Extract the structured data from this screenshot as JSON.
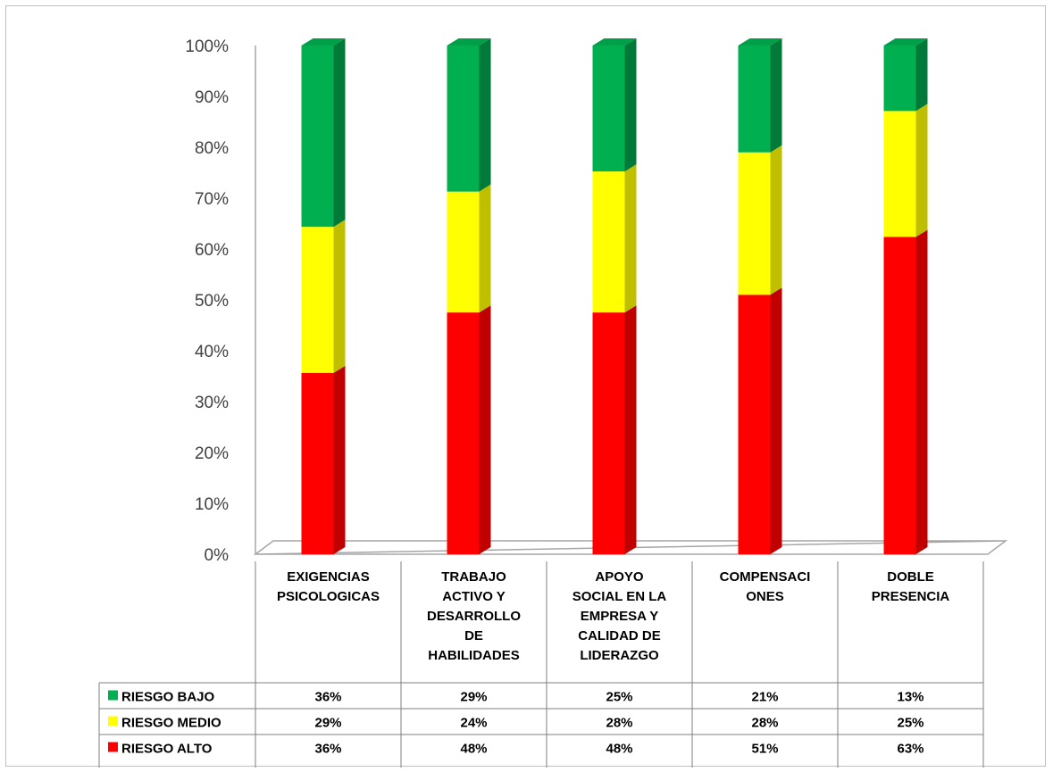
{
  "chart_data": {
    "type": "bar",
    "stacked": true,
    "percent_stacked": true,
    "three_d": true,
    "title": "",
    "xlabel": "",
    "ylabel": "",
    "ylim": [
      0,
      100
    ],
    "yticks": [
      "0%",
      "10%",
      "20%",
      "30%",
      "40%",
      "50%",
      "60%",
      "70%",
      "80%",
      "90%",
      "100%"
    ],
    "categories": [
      [
        "EXIGENCIAS",
        "PSICOLOGICAS"
      ],
      [
        "TRABAJO",
        "ACTIVO Y",
        "DESARROLLO",
        "DE",
        "HABILIDADES"
      ],
      [
        "APOYO",
        "SOCIAL EN LA",
        "EMPRESA Y",
        "CALIDAD DE",
        "LIDERAZGO"
      ],
      [
        "COMPENSACI",
        "ONES"
      ],
      [
        "DOBLE",
        "PRESENCIA"
      ]
    ],
    "series": [
      {
        "name": "RIESGO ALTO",
        "color": "#ff0000",
        "side": "#c00000",
        "values": [
          36,
          48,
          48,
          51,
          63
        ],
        "labels": [
          "36%",
          "48%",
          "48%",
          "51%",
          "63%"
        ]
      },
      {
        "name": "RIESGO MEDIO",
        "color": "#ffff00",
        "side": "#bfbf00",
        "values": [
          29,
          24,
          28,
          28,
          25
        ],
        "labels": [
          "29%",
          "24%",
          "28%",
          "28%",
          "25%"
        ]
      },
      {
        "name": "RIESGO BAJO",
        "color": "#00b050",
        "side": "#007a38",
        "values": [
          36,
          29,
          25,
          21,
          13
        ],
        "labels": [
          "36%",
          "29%",
          "25%",
          "21%",
          "13%"
        ]
      }
    ],
    "grid": false,
    "legend": "data-table",
    "data_table": true
  }
}
